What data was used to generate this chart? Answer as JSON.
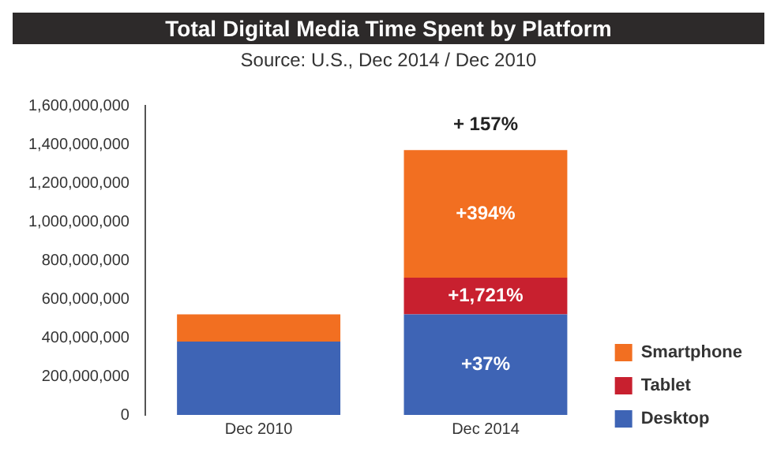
{
  "chart_data": {
    "type": "bar",
    "title": "Total Digital Media Time Spent by Platform",
    "subtitle": "Source: U.S., Dec 2014 / Dec 2010",
    "categories": [
      "Dec 2010",
      "Dec 2014"
    ],
    "stacked": true,
    "series": [
      {
        "name": "Desktop",
        "color": "#3e64b5",
        "values": [
          380000000,
          520000000
        ]
      },
      {
        "name": "Tablet",
        "color": "#c8202f",
        "values": [
          null,
          190000000
        ]
      },
      {
        "name": "Smartphone",
        "color": "#f26f21",
        "values": [
          140000000,
          660000000
        ]
      }
    ],
    "annotations": [
      "+37%",
      "+1,721%",
      "+394%",
      "+ 157%"
    ],
    "ylim": [
      0,
      1600000000
    ],
    "yticks": [
      0,
      {
        "value": 200000000,
        "label": "200,000,000"
      },
      {
        "value": 400000000,
        "label": "400,000,000"
      },
      {
        "value": 600000000,
        "label": "600,000,000"
      },
      {
        "value": 800000000,
        "label": "800,000,000"
      },
      {
        "value": 1000000000,
        "label": "1,000,000,000"
      },
      {
        "value": 1200000000,
        "label": "1,200,000,000"
      },
      {
        "value": 1400000000,
        "label": "1,400,000,000"
      },
      {
        "value": 1600000000,
        "label": "1,600,000,000"
      }
    ],
    "grid": false,
    "legend": "right"
  }
}
